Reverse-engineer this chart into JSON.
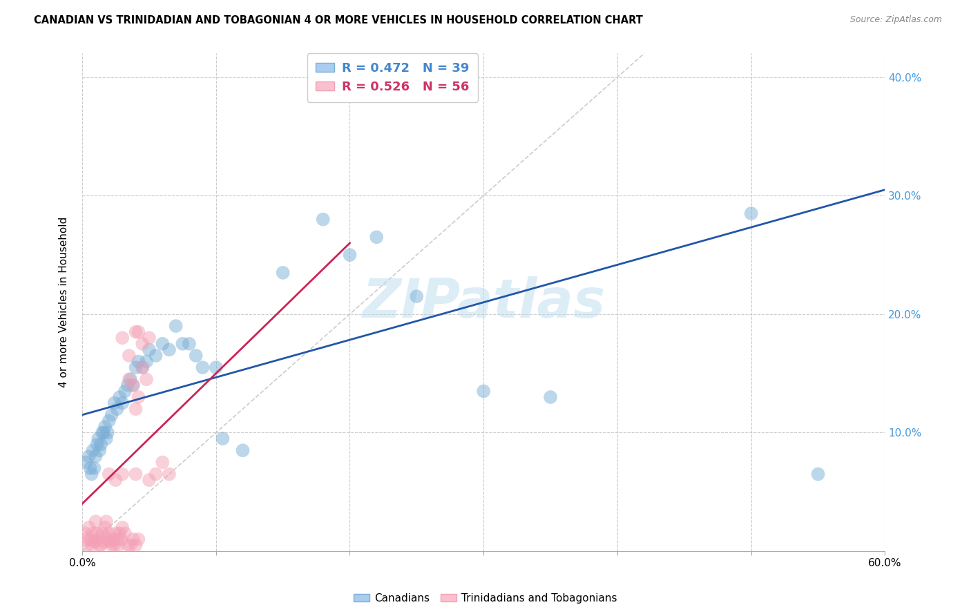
{
  "title": "CANADIAN VS TRINIDADIAN AND TOBAGONIAN 4 OR MORE VEHICLES IN HOUSEHOLD CORRELATION CHART",
  "source": "Source: ZipAtlas.com",
  "ylabel": "4 or more Vehicles in Household",
  "xlim": [
    0.0,
    0.6
  ],
  "ylim": [
    -0.02,
    0.44
  ],
  "plot_ylim": [
    0.0,
    0.42
  ],
  "xticks": [
    0.0,
    0.1,
    0.2,
    0.3,
    0.4,
    0.5,
    0.6
  ],
  "yticks": [
    0.0,
    0.1,
    0.2,
    0.3,
    0.4
  ],
  "xtick_labels_show": [
    "0.0%",
    "",
    "",
    "",
    "",
    "",
    "60.0%"
  ],
  "canadian_color": "#7aaed6",
  "trinidadian_color": "#f4a0b5",
  "canadian_line_color": "#2255aa",
  "trinidadian_line_color": "#cc2255",
  "right_tick_color": "#4499dd",
  "watermark": "ZIPatlas",
  "canadian_points": [
    [
      0.003,
      0.075
    ],
    [
      0.005,
      0.08
    ],
    [
      0.006,
      0.07
    ],
    [
      0.007,
      0.065
    ],
    [
      0.008,
      0.085
    ],
    [
      0.009,
      0.07
    ],
    [
      0.01,
      0.08
    ],
    [
      0.011,
      0.09
    ],
    [
      0.012,
      0.095
    ],
    [
      0.013,
      0.085
    ],
    [
      0.014,
      0.09
    ],
    [
      0.015,
      0.1
    ],
    [
      0.016,
      0.1
    ],
    [
      0.017,
      0.105
    ],
    [
      0.018,
      0.095
    ],
    [
      0.019,
      0.1
    ],
    [
      0.02,
      0.11
    ],
    [
      0.022,
      0.115
    ],
    [
      0.024,
      0.125
    ],
    [
      0.026,
      0.12
    ],
    [
      0.028,
      0.13
    ],
    [
      0.03,
      0.125
    ],
    [
      0.032,
      0.135
    ],
    [
      0.034,
      0.14
    ],
    [
      0.036,
      0.145
    ],
    [
      0.038,
      0.14
    ],
    [
      0.04,
      0.155
    ],
    [
      0.042,
      0.16
    ],
    [
      0.045,
      0.155
    ],
    [
      0.048,
      0.16
    ],
    [
      0.05,
      0.17
    ],
    [
      0.055,
      0.165
    ],
    [
      0.06,
      0.175
    ],
    [
      0.065,
      0.17
    ],
    [
      0.07,
      0.19
    ],
    [
      0.075,
      0.175
    ],
    [
      0.08,
      0.175
    ],
    [
      0.085,
      0.165
    ],
    [
      0.09,
      0.155
    ],
    [
      0.1,
      0.155
    ],
    [
      0.105,
      0.095
    ],
    [
      0.12,
      0.085
    ],
    [
      0.15,
      0.235
    ],
    [
      0.18,
      0.28
    ],
    [
      0.2,
      0.25
    ],
    [
      0.22,
      0.265
    ],
    [
      0.25,
      0.215
    ],
    [
      0.3,
      0.135
    ],
    [
      0.35,
      0.13
    ],
    [
      0.5,
      0.285
    ],
    [
      0.55,
      0.065
    ]
  ],
  "trinidadian_points": [
    [
      0.002,
      0.015
    ],
    [
      0.003,
      0.01
    ],
    [
      0.004,
      0.005
    ],
    [
      0.005,
      0.02
    ],
    [
      0.006,
      0.01
    ],
    [
      0.007,
      0.005
    ],
    [
      0.008,
      0.015
    ],
    [
      0.009,
      0.008
    ],
    [
      0.01,
      0.025
    ],
    [
      0.011,
      0.015
    ],
    [
      0.012,
      0.01
    ],
    [
      0.013,
      0.005
    ],
    [
      0.014,
      0.005
    ],
    [
      0.015,
      0.015
    ],
    [
      0.016,
      0.008
    ],
    [
      0.017,
      0.02
    ],
    [
      0.018,
      0.025
    ],
    [
      0.019,
      0.01
    ],
    [
      0.02,
      0.015
    ],
    [
      0.021,
      0.008
    ],
    [
      0.022,
      0.005
    ],
    [
      0.023,
      0.01
    ],
    [
      0.024,
      0.005
    ],
    [
      0.025,
      0.015
    ],
    [
      0.026,
      0.01
    ],
    [
      0.027,
      0.005
    ],
    [
      0.028,
      0.015
    ],
    [
      0.029,
      0.01
    ],
    [
      0.03,
      0.02
    ],
    [
      0.032,
      0.015
    ],
    [
      0.034,
      0.005
    ],
    [
      0.036,
      0.005
    ],
    [
      0.038,
      0.01
    ],
    [
      0.04,
      0.005
    ],
    [
      0.042,
      0.01
    ],
    [
      0.02,
      0.065
    ],
    [
      0.025,
      0.06
    ],
    [
      0.03,
      0.065
    ],
    [
      0.035,
      0.145
    ],
    [
      0.038,
      0.14
    ],
    [
      0.04,
      0.12
    ],
    [
      0.042,
      0.13
    ],
    [
      0.045,
      0.175
    ],
    [
      0.048,
      0.145
    ],
    [
      0.055,
      0.065
    ],
    [
      0.06,
      0.075
    ],
    [
      0.065,
      0.065
    ],
    [
      0.03,
      0.18
    ],
    [
      0.035,
      0.165
    ],
    [
      0.04,
      0.185
    ],
    [
      0.042,
      0.185
    ],
    [
      0.045,
      0.155
    ],
    [
      0.05,
      0.18
    ],
    [
      0.04,
      0.065
    ],
    [
      0.05,
      0.06
    ]
  ],
  "canadian_regression": {
    "x_start": 0.0,
    "y_start": 0.115,
    "x_end": 0.6,
    "y_end": 0.305
  },
  "trinidadian_regression": {
    "x_start": 0.0,
    "y_start": 0.04,
    "x_end": 0.2,
    "y_end": 0.26
  },
  "diagonal_line": {
    "x_start": 0.0,
    "y_start": 0.0,
    "x_end": 0.42,
    "y_end": 0.42
  }
}
